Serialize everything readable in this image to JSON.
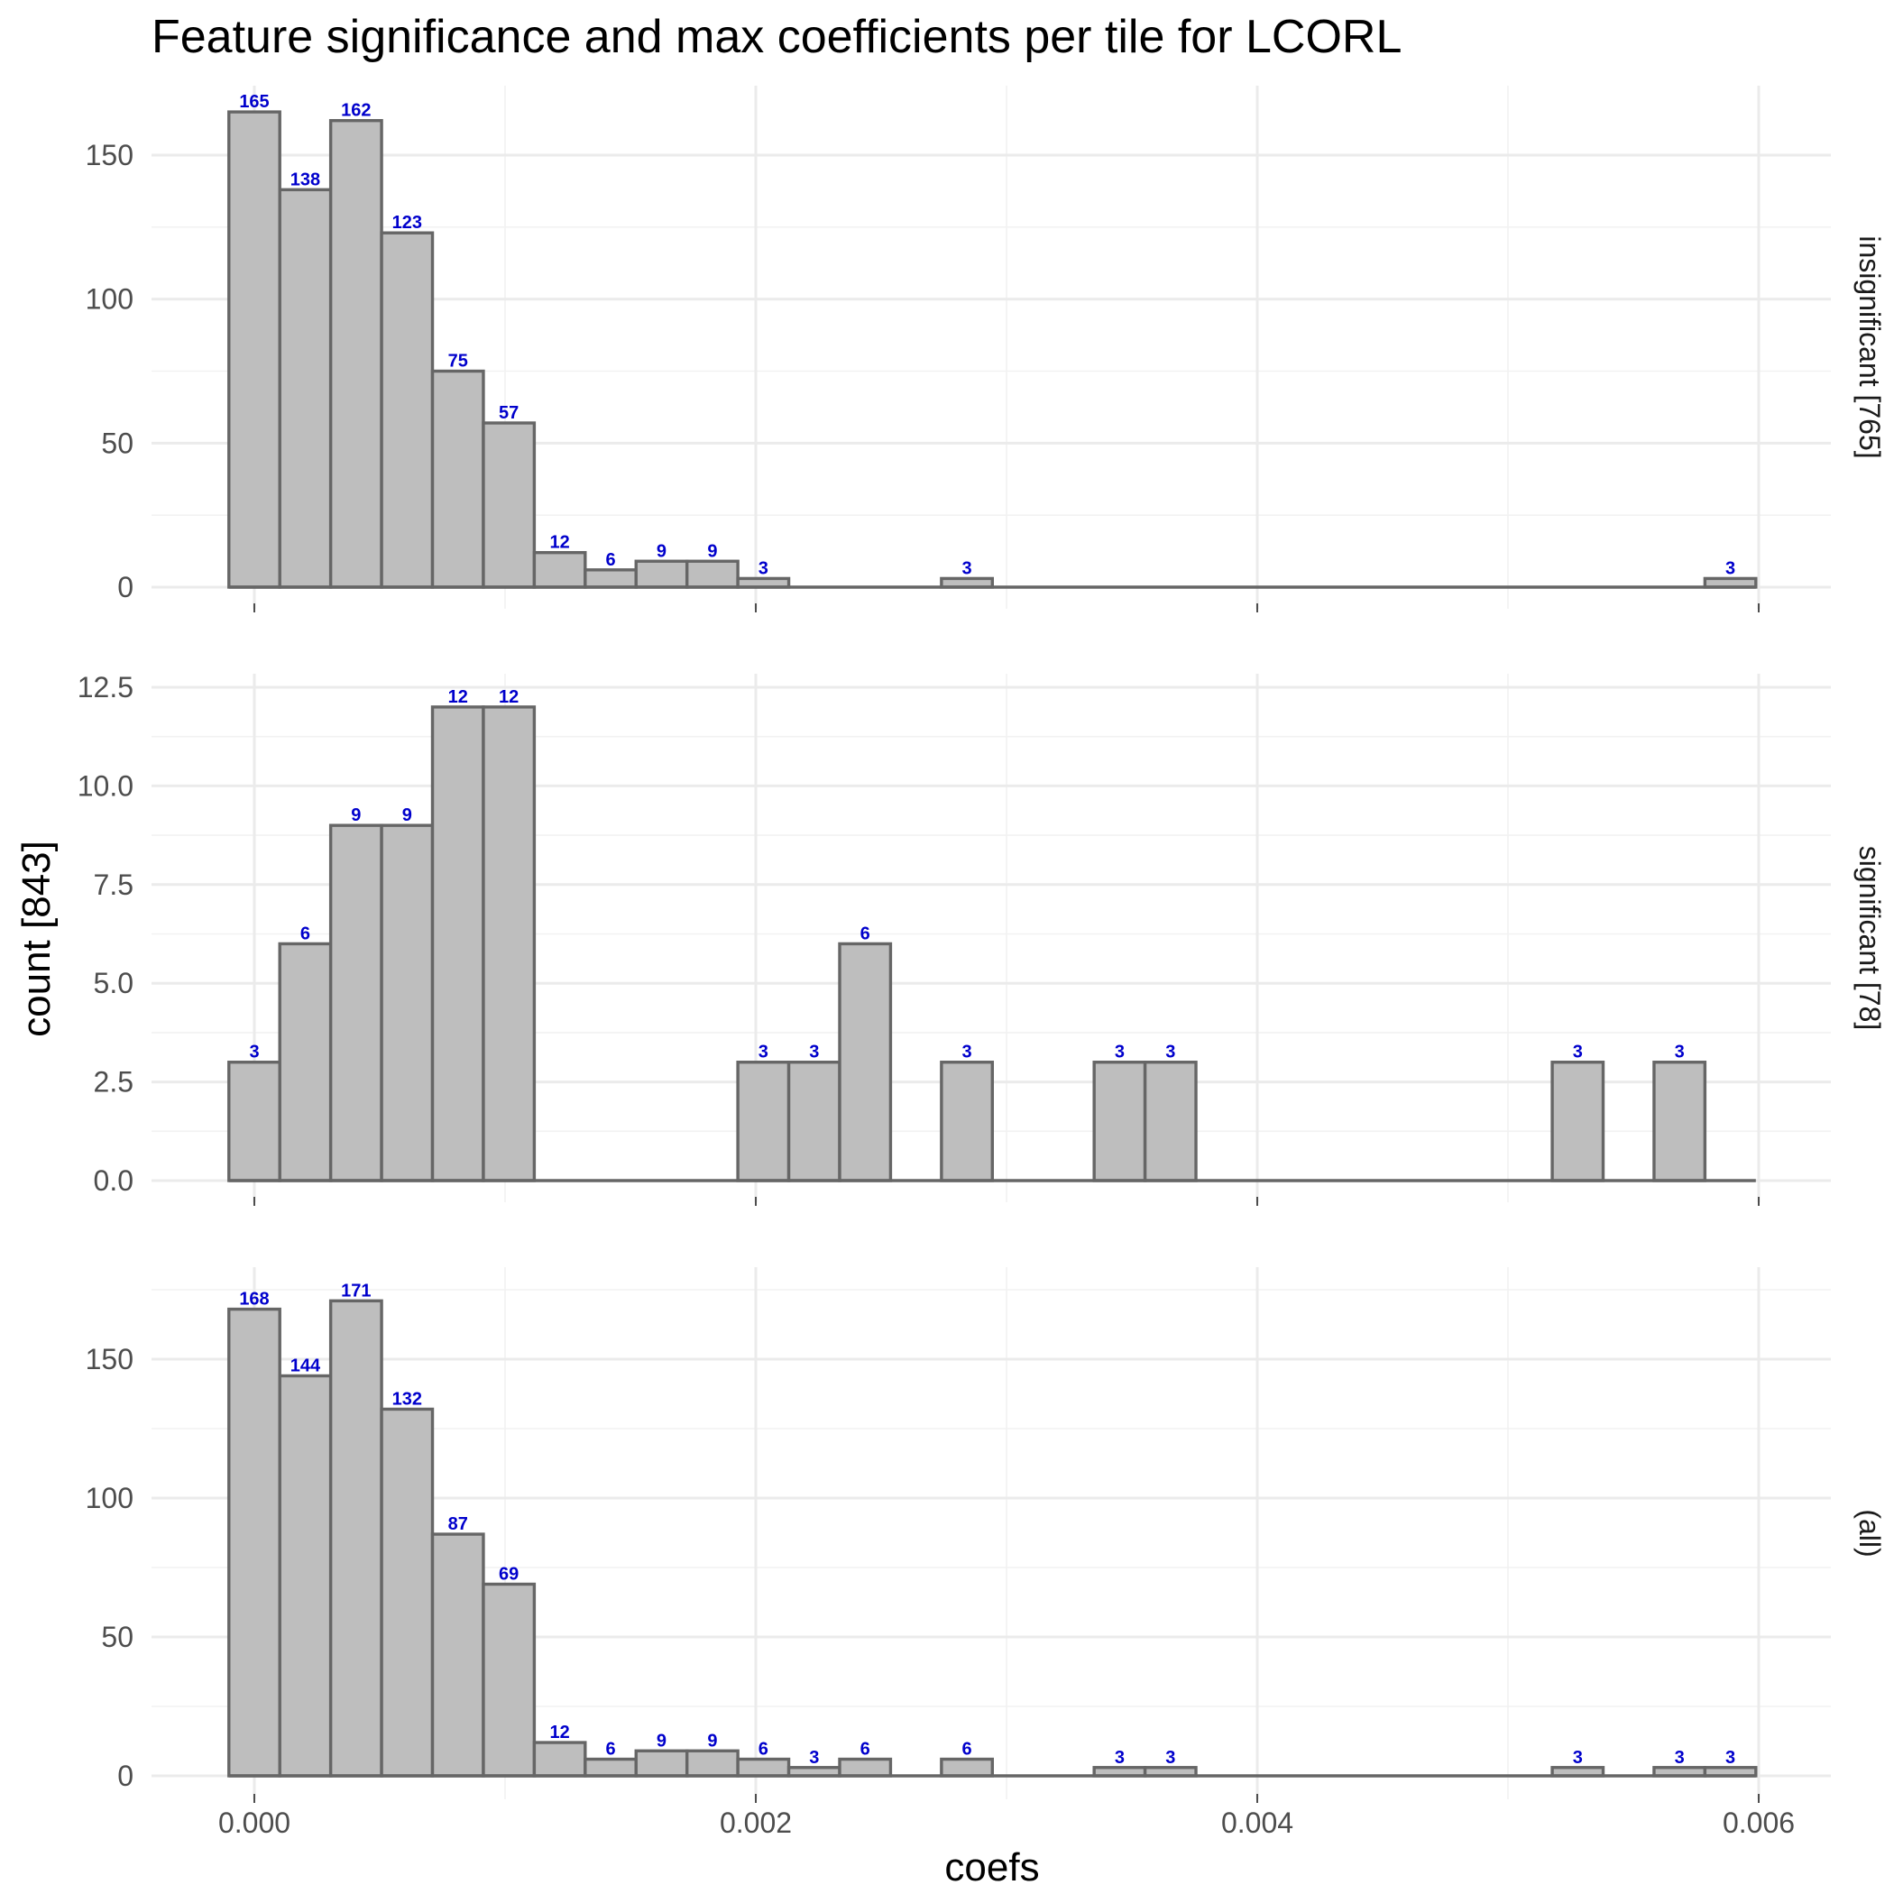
{
  "chart_data": {
    "type": "bar",
    "title": "Feature significance and max coefficients per tile for LCORL",
    "xlabel": "coefs",
    "ylabel": "count [843]",
    "xlim": [
      -0.0004,
      0.0063
    ],
    "x_ticks": [
      0.0,
      0.002,
      0.004,
      0.006
    ],
    "x_tick_labels": [
      "0.000",
      "0.002",
      "0.004",
      "0.006"
    ],
    "bin_width": 0.000203,
    "bin_centers": [
      0.0,
      0.000203,
      0.000406,
      0.000609,
      0.000812,
      0.001015,
      0.001218,
      0.001421,
      0.001624,
      0.001827,
      0.00203,
      0.002233,
      0.002436,
      0.002639,
      0.002842,
      0.003045,
      0.003248,
      0.003451,
      0.003654,
      0.003857,
      0.00406,
      0.004263,
      0.004466,
      0.004669,
      0.004872,
      0.005075,
      0.005278,
      0.005481,
      0.005684,
      0.005887
    ],
    "grid": true,
    "panels": [
      {
        "strip": "insignificant [765]",
        "ylim": [
          0,
          174
        ],
        "y_ticks": [
          0,
          50,
          100,
          150
        ],
        "y_tick_labels": [
          "0",
          "50",
          "100",
          "150"
        ],
        "values": [
          165,
          138,
          162,
          123,
          75,
          57,
          12,
          6,
          9,
          9,
          3,
          0,
          0,
          0,
          3,
          0,
          0,
          0,
          0,
          0,
          0,
          0,
          0,
          0,
          0,
          0,
          0,
          0,
          0,
          3
        ]
      },
      {
        "strip": "significant [78]",
        "ylim": [
          0,
          12.6
        ],
        "y_ticks": [
          0,
          2.5,
          5,
          7.5,
          10,
          12.5
        ],
        "y_tick_labels": [
          "0.0",
          "2.5",
          "5.0",
          "7.5",
          "10.0",
          "12.5"
        ],
        "values": [
          3,
          6,
          9,
          9,
          12,
          12,
          0,
          0,
          0,
          0,
          3,
          3,
          6,
          0,
          3,
          0,
          0,
          3,
          3,
          0,
          0,
          0,
          0,
          0,
          0,
          0,
          3,
          0,
          3,
          0
        ]
      },
      {
        "strip": "(all)",
        "ylim": [
          0,
          180
        ],
        "y_ticks": [
          0,
          50,
          100,
          150
        ],
        "y_tick_labels": [
          "0",
          "50",
          "100",
          "150"
        ],
        "values": [
          168,
          144,
          171,
          132,
          87,
          69,
          12,
          6,
          9,
          9,
          6,
          3,
          6,
          0,
          6,
          0,
          0,
          3,
          3,
          0,
          0,
          0,
          0,
          0,
          0,
          0,
          3,
          0,
          3,
          3
        ]
      }
    ]
  }
}
